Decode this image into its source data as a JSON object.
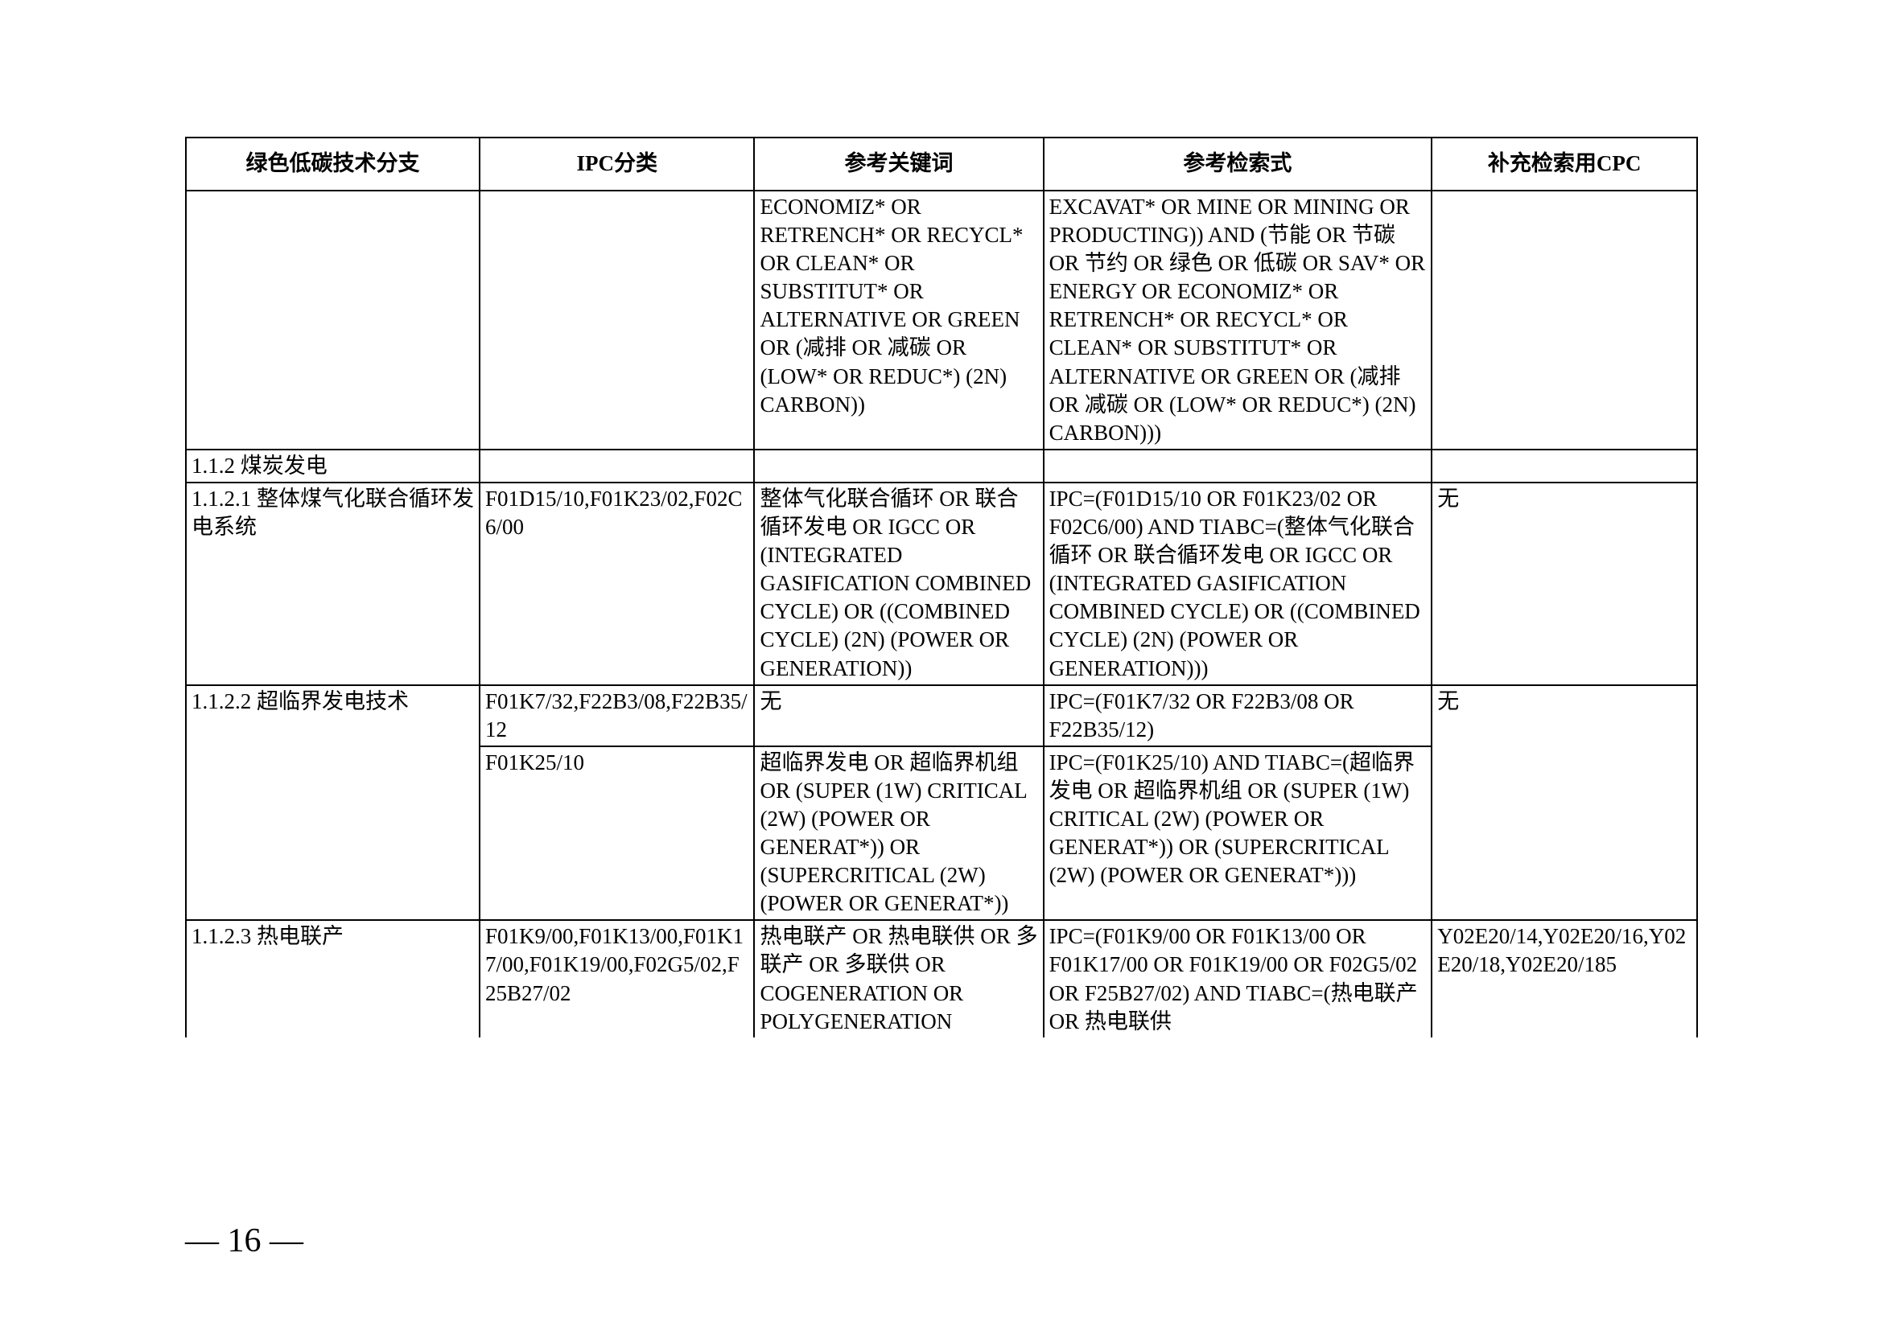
{
  "headers": {
    "branch": "绿色低碳技术分支",
    "ipc": "IPC分类",
    "keywords": "参考关键词",
    "search": "参考检索式",
    "cpc": "补充检索用CPC"
  },
  "rows": [
    {
      "branch": "",
      "ipc": "",
      "keywords": "ECONOMIZ* OR RETRENCH* OR RECYCL* OR CLEAN* OR SUBSTITUT* OR ALTERNATIVE OR GREEN OR (减排 OR 减碳 OR (LOW* OR REDUC*) (2N) CARBON))",
      "search": "EXCAVAT* OR MINE OR MINING OR PRODUCTING)) AND (节能 OR 节碳 OR 节约 OR 绿色 OR 低碳 OR SAV* OR ENERGY OR ECONOMIZ* OR RETRENCH* OR RECYCL* OR CLEAN* OR SUBSTITUT* OR ALTERNATIVE OR GREEN OR (减排 OR 减碳 OR (LOW* OR REDUC*) (2N) CARBON)))",
      "cpc": ""
    },
    {
      "branch": "1.1.2 煤炭发电",
      "ipc": "",
      "keywords": "",
      "search": "",
      "cpc": ""
    },
    {
      "branch": "1.1.2.1 整体煤气化联合循环发电系统",
      "ipc": "F01D15/10,F01K23/02,F02C6/00",
      "keywords": "整体气化联合循环 OR 联合循环发电 OR IGCC OR (INTEGRATED GASIFICATION COMBINED CYCLE) OR ((COMBINED CYCLE) (2N) (POWER OR GENERATION))",
      "search": "IPC=(F01D15/10 OR F01K23/02 OR F02C6/00) AND TIABC=(整体气化联合循环 OR 联合循环发电 OR IGCC OR (INTEGRATED GASIFICATION COMBINED CYCLE) OR ((COMBINED CYCLE) (2N) (POWER OR GENERATION)))",
      "cpc": "无"
    },
    {
      "branch": "1.1.2.2 超临界发电技术",
      "ipc": "F01K7/32,F22B3/08,F22B35/12",
      "keywords": "无",
      "search": "IPC=(F01K7/32 OR F22B3/08 OR F22B35/12)",
      "cpc": "无",
      "rowspan_branch": 2,
      "rowspan_cpc": 2
    },
    {
      "ipc": "F01K25/10",
      "keywords": "超临界发电 OR 超临界机组 OR (SUPER (1W) CRITICAL (2W) (POWER OR GENERAT*)) OR (SUPERCRITICAL (2W) (POWER OR GENERAT*))",
      "search": "IPC=(F01K25/10) AND TIABC=(超临界发电 OR 超临界机组 OR (SUPER (1W) CRITICAL (2W) (POWER OR GENERAT*)) OR (SUPERCRITICAL (2W) (POWER OR GENERAT*)))"
    },
    {
      "branch": "1.1.2.3 热电联产",
      "ipc": "F01K9/00,F01K13/00,F01K17/00,F01K19/00,F02G5/02,F25B27/02",
      "keywords": "热电联产 OR 热电联供 OR 多联产 OR 多联供 OR COGENERATION OR POLYGENERATION",
      "search": "IPC=(F01K9/00 OR F01K13/00 OR F01K17/00 OR F01K19/00 OR F02G5/02 OR F25B27/02) AND TIABC=(热电联产 OR 热电联供",
      "cpc": "Y02E20/14,Y02E20/16,Y02E20/18,Y02E20/185",
      "open_bottom": true
    }
  ],
  "page_number": "— 16 —"
}
